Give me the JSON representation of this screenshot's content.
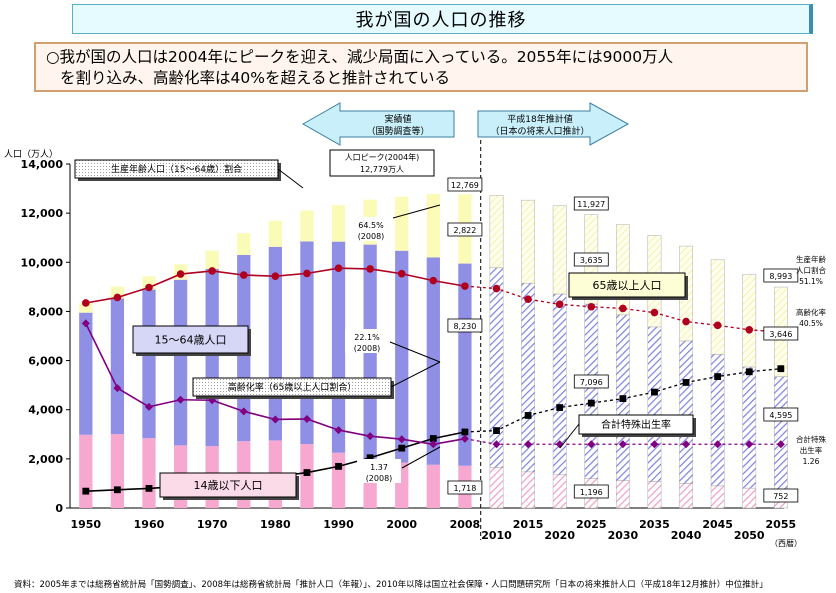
{
  "title": "我が国の人口の推移",
  "summary": {
    "line1": "○我が国の人口は2004年にピークを迎え、減少局面に入っている。2055年には9000万人",
    "line2": "を割り込み、高齢化率は40%を超えると推計されている"
  },
  "source": "資料：2005年までは総務省統計局「国勢調査」、2008年は総務省統計局「推計人口（年報）」、2010年以降は国立社会保障・人口問題研究所「日本の将来推計人口（平成18年12月推計）中位推計」",
  "colors": {
    "under15": "#f7a8d0",
    "workingAge": "#8f8fe6",
    "over65": "#fbfbb8",
    "line_working_share": "#b00020",
    "line_aging_rate": "#000000",
    "line_fertility": "#800080",
    "arrow": "#c9f0fa"
  },
  "chart_data": {
    "type": "bar",
    "ylabel": "人口（万人）",
    "xaxis_note": "（西暦）",
    "ylim": [
      0,
      14000
    ],
    "yticks": [
      "0",
      "2,000",
      "4,000",
      "6,000",
      "8,000",
      "10,000",
      "12,000",
      "14,000"
    ],
    "categories": [
      "1950",
      "1955",
      "1960",
      "1965",
      "1970",
      "1975",
      "1980",
      "1985",
      "1990",
      "1995",
      "2000",
      "2005",
      "2008",
      "2010",
      "2015",
      "2020",
      "2025",
      "2030",
      "2035",
      "2040",
      "2045",
      "2050",
      "2055"
    ],
    "xlabels": [
      "1950",
      "1960",
      "1970",
      "1980",
      "1990",
      "2000",
      "2008",
      "2010",
      "2015",
      "2020",
      "2025",
      "2030",
      "2035",
      "2040",
      "2045",
      "2050",
      "2055"
    ],
    "projected_from_index": 13,
    "series": [
      {
        "name": "14歳以下人口",
        "key": "under15",
        "values": [
          2980,
          3010,
          2840,
          2550,
          2520,
          2720,
          2750,
          2600,
          2250,
          2000,
          1850,
          1760,
          1718,
          1650,
          1470,
          1350,
          1200,
          1120,
          1080,
          1000,
          900,
          810,
          752
        ]
      },
      {
        "name": "15〜64歳人口",
        "key": "workingAge",
        "values": [
          4970,
          5520,
          6050,
          6740,
          7210,
          7580,
          7880,
          8250,
          8590,
          8720,
          8620,
          8440,
          8230,
          8130,
          7680,
          7360,
          7100,
          6740,
          6290,
          5800,
          5350,
          4930,
          4595
        ]
      },
      {
        "name": "65歳以上人口",
        "key": "over65",
        "values": [
          410,
          480,
          540,
          620,
          740,
          890,
          1060,
          1250,
          1490,
          1830,
          2200,
          2580,
          2822,
          2940,
          3380,
          3590,
          3635,
          3670,
          3720,
          3860,
          3850,
          3760,
          3646
        ]
      }
    ],
    "lines": [
      {
        "name": "生産年齢人口（15〜64歳）割合",
        "key": "line_working_share",
        "values": [
          59.6,
          61.2,
          64.1,
          68.0,
          68.9,
          67.7,
          67.4,
          68.2,
          69.7,
          69.5,
          68.1,
          66.1,
          64.5,
          63.8,
          60.7,
          59.2,
          58.5,
          58.0,
          56.8,
          54.2,
          53.1,
          51.8,
          51.1
        ]
      },
      {
        "name": "高齢化率（65歳以上人口割合）",
        "key": "line_aging_rate",
        "values": [
          4.9,
          5.3,
          5.7,
          6.3,
          7.1,
          7.9,
          9.1,
          10.3,
          12.1,
          14.6,
          17.4,
          20.2,
          22.1,
          22.5,
          26.9,
          29.2,
          30.5,
          31.8,
          33.7,
          36.5,
          38.2,
          39.6,
          40.5
        ]
      },
      {
        "name": "合計特殊出生率",
        "key": "line_fertility",
        "values": [
          3.65,
          2.37,
          2.0,
          2.14,
          2.13,
          1.91,
          1.75,
          1.76,
          1.54,
          1.42,
          1.36,
          1.26,
          1.37,
          1.26,
          1.26,
          1.26,
          1.26,
          1.26,
          1.26,
          1.26,
          1.26,
          1.26,
          1.26
        ]
      }
    ],
    "arrows": {
      "actual": {
        "line1": "実績値",
        "line2": "（国勢調査等）"
      },
      "projected": {
        "line1": "平成18年推計値",
        "line2": "（日本の将来人口推計）"
      }
    },
    "callouts": [
      {
        "key": "working_share_title",
        "text": "生産年齢人口（15〜64歳）割合"
      },
      {
        "key": "peak",
        "line1": "人口ピーク(2004年)",
        "line2": "12,779万人"
      },
      {
        "key": "work_label",
        "text": "15〜64歳人口"
      },
      {
        "key": "over65_label",
        "text": "65歳以上人口"
      },
      {
        "key": "under15_label",
        "text": "14歳以下人口"
      },
      {
        "key": "aging_title",
        "text": "高齢化率（65歳以上人口割合）"
      },
      {
        "key": "fert_title",
        "text": "合計特殊出生率"
      },
      {
        "key": "ws2008",
        "line1": "64.5%",
        "line2": "(2008)"
      },
      {
        "key": "ar2008",
        "line1": "22.1%",
        "line2": "(2008)"
      },
      {
        "key": "fr2008",
        "line1": "1.37",
        "line2": "(2008)"
      }
    ],
    "data_labels_2008": {
      "total": "12,769",
      "over65": "2,822",
      "working": "8,230",
      "under15": "1,718"
    },
    "data_labels_2025": {
      "total": "11,927",
      "over65": "3,635",
      "working": "7,096",
      "under15": "1,196"
    },
    "data_labels_2055": {
      "total": "8,993",
      "over65": "3,646",
      "working": "4,595",
      "under15": "752"
    },
    "right_annotations": [
      {
        "key": "working_share",
        "lines": [
          "生産年齢",
          "人口割合",
          "51.1%"
        ]
      },
      {
        "key": "aging_rate",
        "lines": [
          "高齢化率",
          "40.5%"
        ]
      },
      {
        "key": "fertility",
        "lines": [
          "合計特殊",
          "出生率",
          "1.26"
        ]
      }
    ]
  }
}
